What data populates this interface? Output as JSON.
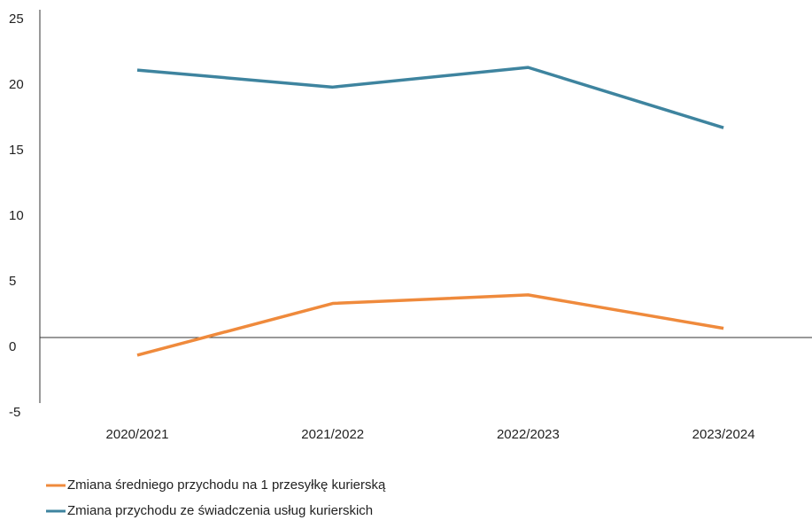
{
  "chart_data": {
    "type": "line",
    "categories": [
      "2020/2021",
      "2021/2022",
      "2022/2023",
      "2023/2024"
    ],
    "series": [
      {
        "name": "Zmiana średniego przychodu na 1 przesyłkę kurierską",
        "color": "#ef8a3c",
        "values": [
          -1.35,
          2.6,
          3.25,
          0.7
        ]
      },
      {
        "name": "Zmiana przychodu ze świadczenia usług kurierskich",
        "color": "#3e849f",
        "values": [
          20.4,
          19.1,
          20.6,
          16.0
        ]
      }
    ],
    "ylim": [
      -5,
      25
    ],
    "yticks": [
      -5,
      0,
      5,
      10,
      15,
      20,
      25
    ],
    "grid": false
  }
}
